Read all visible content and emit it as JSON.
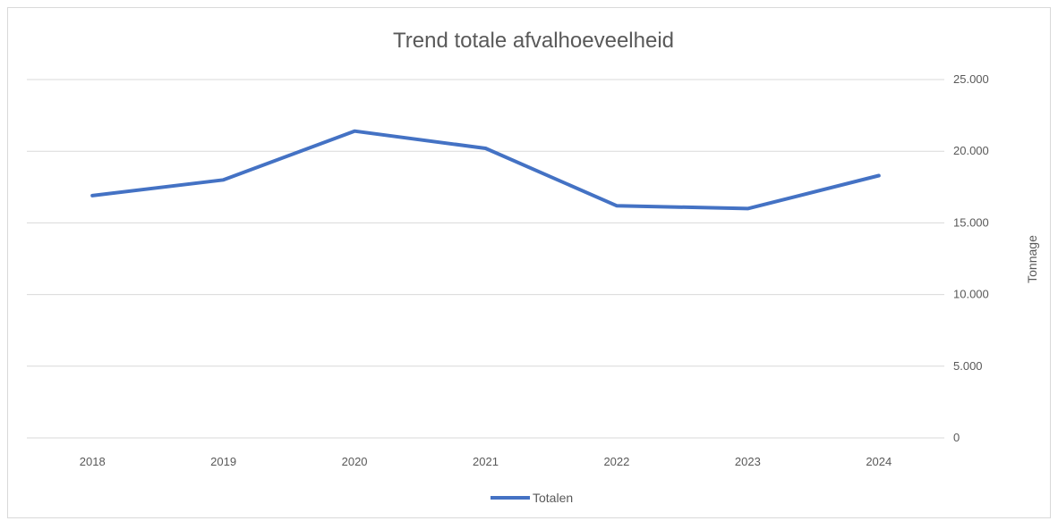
{
  "chart_data": {
    "type": "line",
    "title": "Trend totale afvalhoeveelheid",
    "xlabel": "",
    "ylabel": "Tonnage",
    "categories": [
      "2018",
      "2019",
      "2020",
      "2021",
      "2022",
      "2023",
      "2024"
    ],
    "series": [
      {
        "name": "Totalen",
        "values": [
          16900,
          18000,
          21400,
          20200,
          16200,
          16000,
          18300
        ],
        "color": "#4472c4"
      }
    ],
    "yticks": [
      0,
      5000,
      10000,
      15000,
      20000,
      25000
    ],
    "ytick_labels": [
      "0",
      "5.000",
      "10.000",
      "15.000",
      "20.000",
      "25.000"
    ],
    "ylim": [
      0,
      25000
    ],
    "y_axis_side": "right",
    "grid": true,
    "legend": "bottom",
    "gridline_color": "#d9d9d9"
  }
}
